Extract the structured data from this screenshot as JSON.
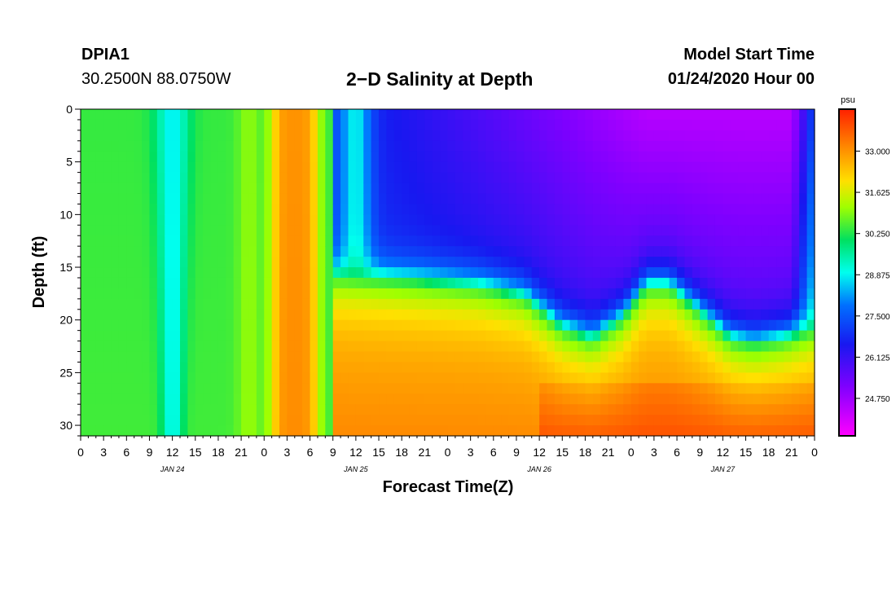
{
  "header": {
    "station_id": "DPIA1",
    "coordinates": "30.2500N 88.0750W",
    "title": "2−D Salinity at Depth",
    "model_start_label": "Model Start Time",
    "model_start_value": "01/24/2020 Hour 00"
  },
  "chart_data": {
    "type": "heatmap",
    "title": "2−D Salinity at Depth",
    "xlabel": "Forecast Time(Z)",
    "ylabel": "Depth (ft)",
    "x_hours_range": [
      0,
      96
    ],
    "x_tick_labels": [
      "0",
      "3",
      "6",
      "9",
      "12",
      "15",
      "18",
      "21",
      "0",
      "3",
      "6",
      "9",
      "12",
      "15",
      "18",
      "21",
      "0",
      "3",
      "6",
      "9",
      "12",
      "15",
      "18",
      "21",
      "0",
      "3",
      "6",
      "9",
      "12",
      "15",
      "18",
      "21",
      "0"
    ],
    "date_labels": [
      {
        "hour": 12,
        "label": "JAN 24"
      },
      {
        "hour": 36,
        "label": "JAN 25"
      },
      {
        "hour": 60,
        "label": "JAN 26"
      },
      {
        "hour": 84,
        "label": "JAN 27"
      }
    ],
    "y_range": [
      0,
      31
    ],
    "y_ticks": [
      0,
      5,
      10,
      15,
      20,
      25,
      30
    ],
    "colorbar": {
      "unit": "psu",
      "range": [
        23.5,
        34.4
      ],
      "tick_values": [
        33.0,
        31.625,
        30.25,
        28.875,
        27.5,
        26.125,
        24.75
      ],
      "tick_labels": [
        "33.000",
        "31.625",
        "30.250",
        "28.875",
        "27.500",
        "26.125",
        "24.750"
      ]
    },
    "features": {
      "fresh_column_hour": 12,
      "fresh_column_salinity": 28.9,
      "salty_band_hours": [
        24,
        32
      ],
      "low_salinity_surface_layer_hours": [
        34,
        96
      ],
      "surface_minimum_salinity": 24.0,
      "halocline_depth_ft": [
        [
          34,
          16
        ],
        [
          44,
          16.5
        ],
        [
          52,
          17
        ],
        [
          58,
          18
        ],
        [
          63,
          21
        ],
        [
          67,
          22
        ],
        [
          71,
          20
        ],
        [
          74,
          17
        ],
        [
          77,
          17
        ],
        [
          81,
          19.5
        ],
        [
          85,
          22
        ],
        [
          88,
          22.5
        ],
        [
          92,
          22
        ],
        [
          96,
          21
        ]
      ],
      "bottom_max_salinity": 34.2
    }
  }
}
